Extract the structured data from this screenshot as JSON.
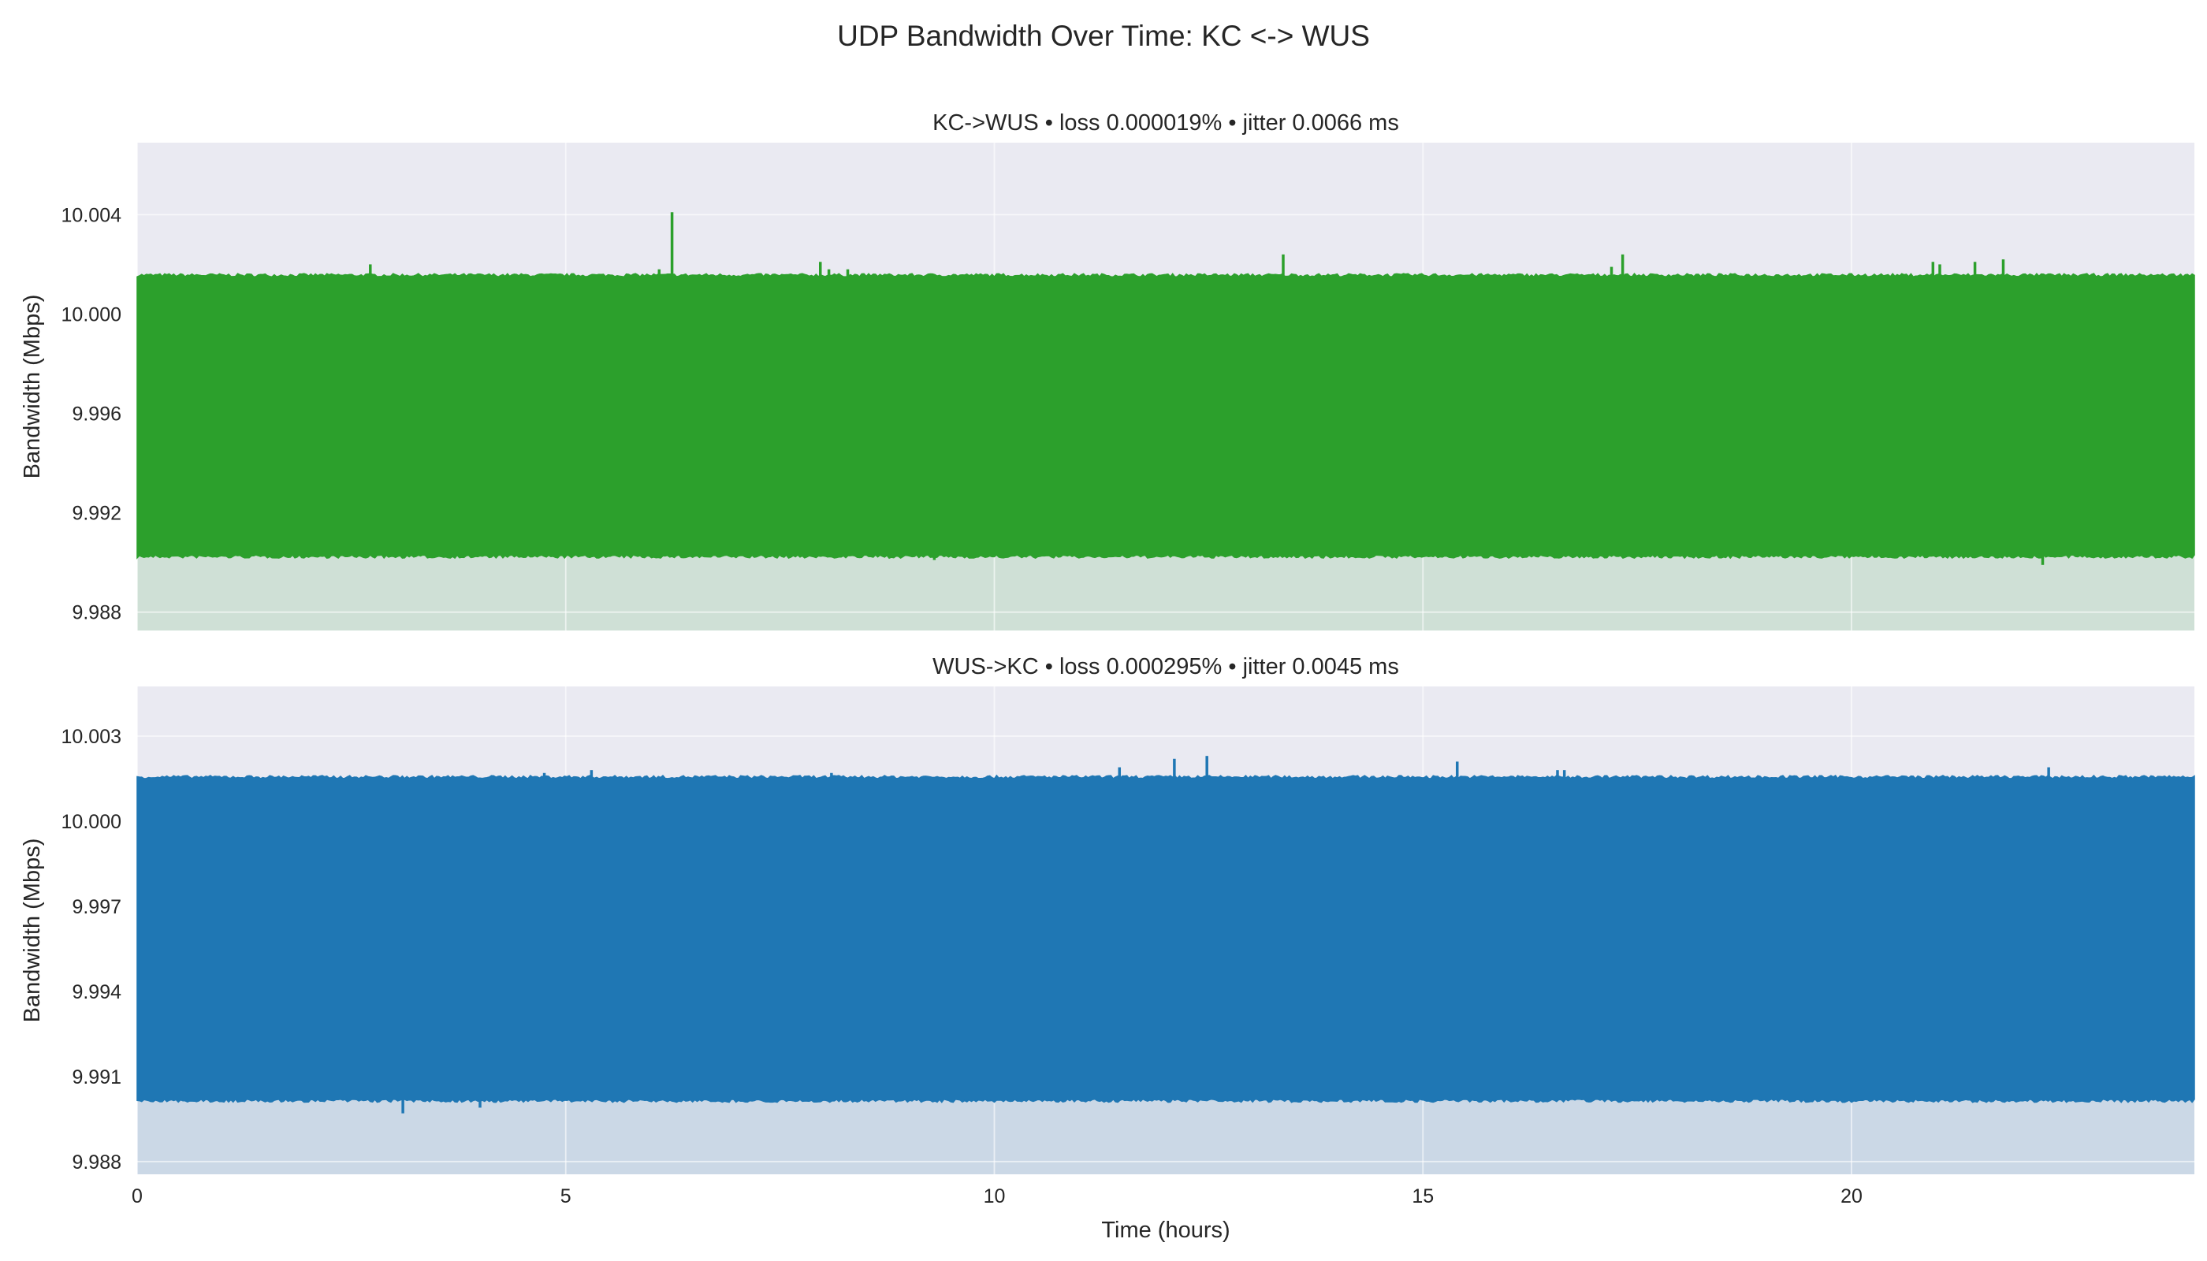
{
  "title": "UDP Bandwidth Over Time: KC <-> WUS",
  "chart_data": [
    {
      "type": "line",
      "title": "KC->WUS • loss 0.000019% • jitter 0.0066 ms",
      "xlabel": "",
      "ylabel": "Bandwidth (Mbps)",
      "xlim": [
        0,
        24
      ],
      "ylim": [
        9.98726,
        10.0069
      ],
      "yticks": [
        "9.988",
        "9.992",
        "9.996",
        "10.000",
        "10.004"
      ],
      "ytick_values": [
        9.988,
        9.992,
        9.996,
        10.0,
        10.004
      ],
      "xticks": [
        "0",
        "5",
        "10",
        "15",
        "20"
      ],
      "xtick_values": [
        0,
        5,
        10,
        15,
        20
      ],
      "grid": true,
      "color": "#2ca02c",
      "fill_color": "#cfe0d6",
      "band": {
        "low": 9.9903,
        "high": 10.0015
      },
      "spikes_up": [
        [
          2.72,
          10.002
        ],
        [
          6.09,
          10.0018
        ],
        [
          6.24,
          10.0041
        ],
        [
          7.97,
          10.0021
        ],
        [
          8.07,
          10.0018
        ],
        [
          8.29,
          10.0018
        ],
        [
          13.37,
          10.0024
        ],
        [
          17.2,
          10.0019
        ],
        [
          17.33,
          10.0024
        ],
        [
          20.95,
          10.0021
        ],
        [
          21.03,
          10.002
        ],
        [
          21.44,
          10.0021
        ],
        [
          21.77,
          10.0022
        ]
      ],
      "spikes_down": [
        [
          9.3,
          9.9901
        ],
        [
          22.23,
          9.9899
        ]
      ]
    },
    {
      "type": "line",
      "title": "WUS->KC • loss 0.000295% • jitter 0.0045 ms",
      "xlabel": "Time (hours)",
      "ylabel": "Bandwidth (Mbps)",
      "xlim": [
        0,
        24
      ],
      "ylim": [
        9.98755,
        10.00475
      ],
      "yticks": [
        "9.988",
        "9.991",
        "9.994",
        "9.997",
        "10.000",
        "10.003"
      ],
      "ytick_values": [
        9.988,
        9.991,
        9.994,
        9.997,
        10.0,
        10.003
      ],
      "xticks": [
        "0",
        "5",
        "10",
        "15",
        "20"
      ],
      "xtick_values": [
        0,
        5,
        10,
        15,
        20
      ],
      "grid": true,
      "color": "#1f77b4",
      "fill_color": "#cbd8e6",
      "band": {
        "low": 9.9902,
        "high": 10.0015
      },
      "spikes_up": [
        [
          4.75,
          10.0017
        ],
        [
          5.3,
          10.0018
        ],
        [
          8.1,
          10.0017
        ],
        [
          11.46,
          10.0019
        ],
        [
          12.1,
          10.0022
        ],
        [
          12.48,
          10.0023
        ],
        [
          15.4,
          10.0021
        ],
        [
          16.57,
          10.0018
        ],
        [
          16.65,
          10.0018
        ],
        [
          22.3,
          10.0019
        ]
      ],
      "spikes_down": [
        [
          3.1,
          9.9897
        ],
        [
          4.0,
          9.9899
        ]
      ]
    }
  ]
}
